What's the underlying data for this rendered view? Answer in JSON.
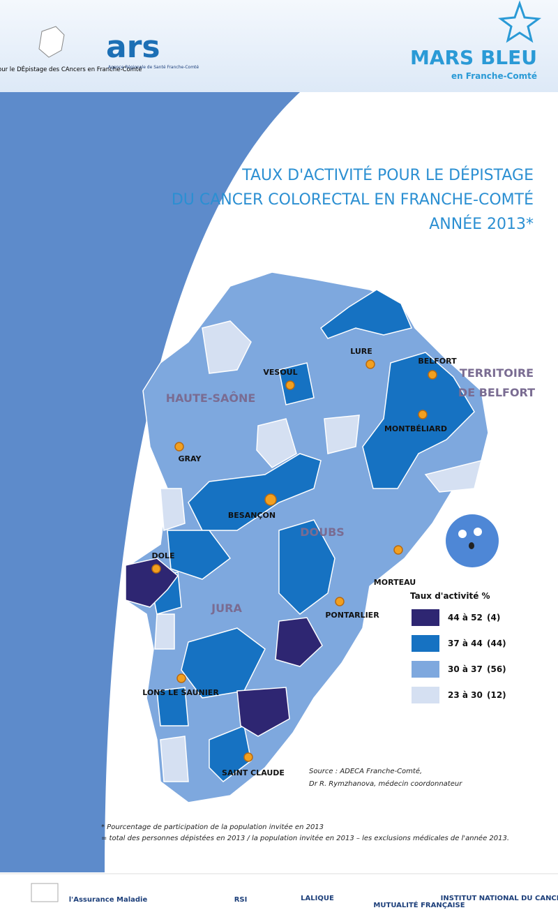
{
  "header": {
    "adeca": "Association pour le DÉpistage des CAncers en Franche-Comté",
    "ars": "ars",
    "ars_sub": "Agence Régionale de Santé Franche-Comté",
    "brand": "MARS BLEU",
    "brand_sub": "en Franche-Comté"
  },
  "title": [
    "TAUX D'ACTIVITÉ POUR LE DÉPISTAGE",
    "DU CANCER COLORECTAL EN FRANCHE-COMTÉ",
    "ANNÉE 2013*"
  ],
  "map": {
    "departments": [
      "HAUTE-SAÔNE",
      "TERRITOIRE",
      "DE BELFORT",
      "DOUBS",
      "JURA"
    ],
    "cities": [
      "LURE",
      "VESOUL",
      "BELFORT",
      "MONTBÉLIARD",
      "GRAY",
      "BESANÇON",
      "MORTEAU",
      "DOLE",
      "PONTARLIER",
      "LONS LE SAUNIER",
      "SAINT CLAUDE"
    ]
  },
  "legend": {
    "title": "Taux d'activité %",
    "items": [
      {
        "range": "44 à 52",
        "count": "(4)",
        "color": "#2e2672"
      },
      {
        "range": "37 à 44",
        "count": "(44)",
        "color": "#1672c2"
      },
      {
        "range": "30 à 37",
        "count": "(56)",
        "color": "#7ea8de"
      },
      {
        "range": "23 à 30",
        "count": "(12)",
        "color": "#d5e0f2"
      }
    ]
  },
  "source": [
    "Source : ADECA Franche-Comté,",
    "Dr R. Rymzhanova, médecin coordonnateur"
  ],
  "footnotes": [
    "* Pourcentage de participation de la population invitée en 2013",
    "= total des personnes dépistées en 2013 / la population invitée en 2013 – les exclusions médicales de l'année 2013."
  ],
  "footer": [
    "l'Assurance Maladie",
    "RSI",
    "LALIQUE",
    "MUTUALITÉ FRANÇAISE",
    "INSTITUT NATIONAL DU CANCER"
  ]
}
